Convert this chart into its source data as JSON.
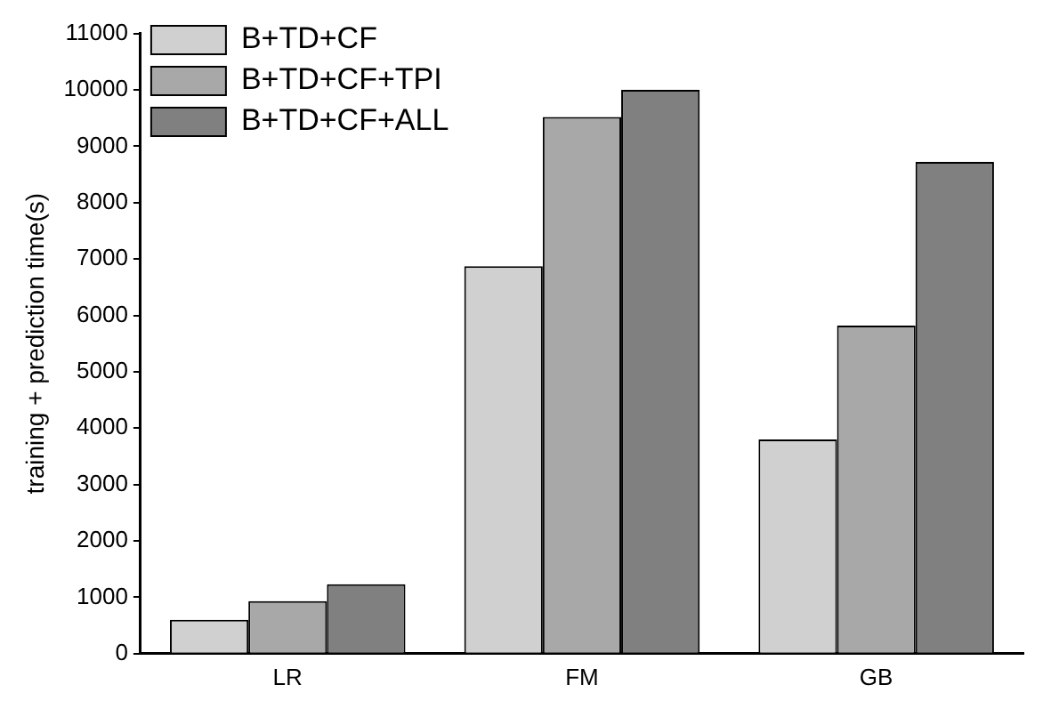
{
  "chart_data": {
    "type": "bar",
    "ylabel": "training + prediction time(s)",
    "categories": [
      "LR",
      "FM",
      "GB"
    ],
    "series": [
      {
        "name": "B+TD+CF",
        "color": "#d0d0d0",
        "values": [
          600,
          6870,
          3800
        ]
      },
      {
        "name": "B+TD+CF+TPI",
        "color": "#a8a8a8",
        "values": [
          930,
          9520,
          5820
        ]
      },
      {
        "name": "B+TD+CF+ALL",
        "color": "#808080",
        "values": [
          1230,
          10000,
          8720
        ]
      }
    ],
    "ylim": [
      0,
      11000
    ],
    "yticks": [
      0,
      1000,
      2000,
      3000,
      4000,
      5000,
      6000,
      7000,
      8000,
      9000,
      10000,
      11000
    ],
    "grid": false,
    "legend": "top left"
  }
}
